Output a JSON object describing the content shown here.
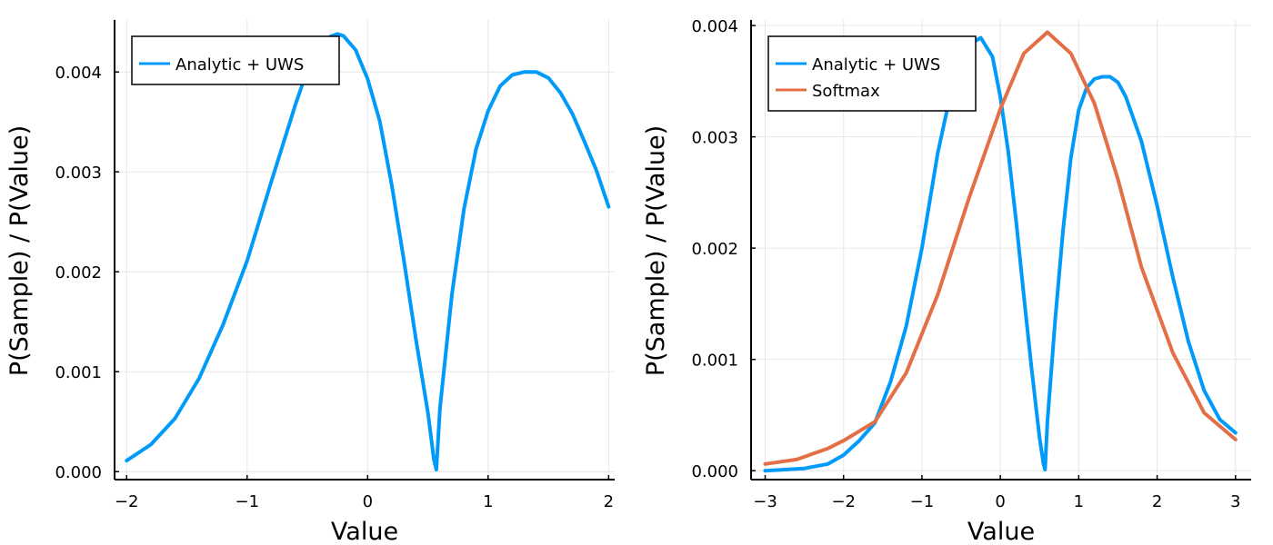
{
  "chart_data": [
    {
      "type": "line",
      "xlabel": "Value",
      "ylabel": "P(Sample) / P(Value)",
      "xlim": [
        -2.1,
        2.05
      ],
      "ylim": [
        -8e-05,
        0.00452
      ],
      "xticks": [
        -2,
        -1,
        0,
        1,
        2
      ],
      "xtick_labels": [
        "−2",
        "−1",
        "0",
        "1",
        "2"
      ],
      "yticks": [
        0,
        0.001,
        0.002,
        0.003,
        0.004
      ],
      "ytick_labels": [
        "0.000",
        "0.001",
        "0.002",
        "0.003",
        "0.004"
      ],
      "grid": true,
      "legend_position": "top-left",
      "series": [
        {
          "name": "Analytic + UWS",
          "color": "#009af9",
          "x": [
            -2.0,
            -1.8,
            -1.6,
            -1.4,
            -1.2,
            -1.0,
            -0.8,
            -0.6,
            -0.5,
            -0.4,
            -0.3,
            -0.25,
            -0.2,
            -0.1,
            0.0,
            0.1,
            0.2,
            0.3,
            0.4,
            0.5,
            0.55,
            0.57,
            0.6,
            0.7,
            0.8,
            0.9,
            1.0,
            1.1,
            1.2,
            1.3,
            1.4,
            1.5,
            1.6,
            1.7,
            1.8,
            1.9,
            2.0
          ],
          "y": [
            0.00011,
            0.00027,
            0.00053,
            0.00093,
            0.00147,
            0.00211,
            0.0029,
            0.00367,
            0.00402,
            0.00428,
            0.00436,
            0.00438,
            0.00436,
            0.00422,
            0.00393,
            0.00351,
            0.00287,
            0.00212,
            0.00133,
            0.00059,
            0.00012,
            2e-05,
            0.00063,
            0.00178,
            0.00263,
            0.00323,
            0.00361,
            0.00386,
            0.00397,
            0.004,
            0.004,
            0.00394,
            0.00379,
            0.00358,
            0.0033,
            0.00301,
            0.00265
          ]
        }
      ]
    },
    {
      "type": "line",
      "xlabel": "Value",
      "ylabel": "P(Sample) / P(Value)",
      "xlim": [
        -3.18,
        3.2
      ],
      "ylim": [
        -8e-05,
        0.00405
      ],
      "xticks": [
        -3,
        -2,
        -1,
        0,
        1,
        2,
        3
      ],
      "xtick_labels": [
        "−3",
        "−2",
        "−1",
        "0",
        "1",
        "2",
        "3"
      ],
      "yticks": [
        0,
        0.001,
        0.002,
        0.003,
        0.004
      ],
      "ytick_labels": [
        "0.000",
        "0.001",
        "0.002",
        "0.003",
        "0.004"
      ],
      "grid": true,
      "legend_position": "top-left",
      "series": [
        {
          "name": "Analytic + UWS",
          "color": "#009af9",
          "x": [
            -3.0,
            -2.5,
            -2.2,
            -2.0,
            -1.8,
            -1.6,
            -1.4,
            -1.2,
            -1.0,
            -0.8,
            -0.6,
            -0.4,
            -0.25,
            -0.1,
            0.0,
            0.1,
            0.2,
            0.3,
            0.4,
            0.5,
            0.55,
            0.57,
            0.6,
            0.7,
            0.8,
            0.9,
            1.0,
            1.1,
            1.2,
            1.3,
            1.4,
            1.5,
            1.6,
            1.8,
            2.0,
            2.2,
            2.4,
            2.6,
            2.8,
            3.0
          ],
          "y": [
            0.0,
            2e-05,
            6e-05,
            0.00014,
            0.00027,
            0.00043,
            0.0008,
            0.0013,
            0.002,
            0.00285,
            0.0035,
            0.00383,
            0.00389,
            0.00372,
            0.00336,
            0.00287,
            0.00225,
            0.00157,
            0.00091,
            0.0003,
            6e-05,
            1e-05,
            0.00044,
            0.00136,
            0.00216,
            0.00281,
            0.00324,
            0.00344,
            0.00352,
            0.00354,
            0.00354,
            0.00349,
            0.00336,
            0.00296,
            0.00238,
            0.00174,
            0.00116,
            0.00072,
            0.00046,
            0.00034
          ]
        },
        {
          "name": "Softmax",
          "color": "#e26f46",
          "x": [
            -3.0,
            -2.6,
            -2.2,
            -2.0,
            -1.6,
            -1.2,
            -0.8,
            -0.4,
            0.0,
            0.3,
            0.6,
            0.9,
            1.2,
            1.5,
            1.8,
            2.2,
            2.6,
            3.0
          ],
          "y": [
            6e-05,
            0.0001,
            0.0002,
            0.00027,
            0.00044,
            0.00088,
            0.00158,
            0.00245,
            0.00325,
            0.00375,
            0.00394,
            0.00375,
            0.0033,
            0.00262,
            0.00183,
            0.00106,
            0.00052,
            0.00028
          ]
        }
      ]
    }
  ]
}
